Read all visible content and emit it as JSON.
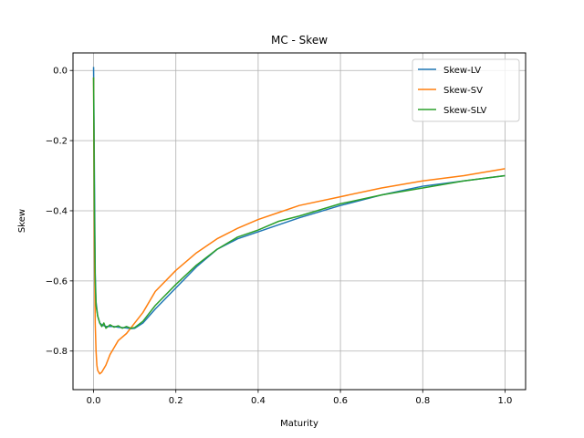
{
  "chart_data": {
    "type": "line",
    "title": "MC - Skew",
    "xlabel": "Maturity",
    "ylabel": "Skew",
    "xlim": [
      -0.05,
      1.05
    ],
    "ylim": [
      -0.91,
      0.05
    ],
    "xticks": [
      0.0,
      0.2,
      0.4,
      0.6,
      0.8,
      1.0
    ],
    "xtick_labels": [
      "0.0",
      "0.2",
      "0.4",
      "0.6",
      "0.8",
      "1.0"
    ],
    "yticks": [
      0.0,
      -0.2,
      -0.4,
      -0.6,
      -0.8
    ],
    "ytick_labels": [
      "0.0",
      "−0.2",
      "−0.4",
      "−0.6",
      "−0.8"
    ],
    "grid": true,
    "legend_position": "top-right",
    "series": [
      {
        "name": "Skew-LV",
        "color": "#1f77b4",
        "x": [
          0.0,
          0.002,
          0.004,
          0.006,
          0.01,
          0.015,
          0.02,
          0.03,
          0.04,
          0.05,
          0.06,
          0.07,
          0.08,
          0.09,
          0.1,
          0.12,
          0.15,
          0.2,
          0.25,
          0.3,
          0.35,
          0.4,
          0.45,
          0.5,
          0.6,
          0.7,
          0.8,
          0.9,
          1.0
        ],
        "y": [
          0.01,
          -0.3,
          -0.58,
          -0.66,
          -0.7,
          -0.72,
          -0.725,
          -0.73,
          -0.73,
          -0.73,
          -0.732,
          -0.733,
          -0.734,
          -0.736,
          -0.735,
          -0.72,
          -0.68,
          -0.62,
          -0.56,
          -0.51,
          -0.48,
          -0.46,
          -0.44,
          -0.42,
          -0.385,
          -0.355,
          -0.33,
          -0.315,
          -0.3
        ]
      },
      {
        "name": "Skew-SV",
        "color": "#ff7f0e",
        "x": [
          0.0,
          0.002,
          0.004,
          0.006,
          0.008,
          0.01,
          0.015,
          0.02,
          0.03,
          0.04,
          0.05,
          0.06,
          0.08,
          0.1,
          0.12,
          0.15,
          0.2,
          0.25,
          0.3,
          0.35,
          0.4,
          0.45,
          0.5,
          0.6,
          0.7,
          0.8,
          0.9,
          1.0
        ],
        "y": [
          -0.02,
          -0.5,
          -0.72,
          -0.8,
          -0.84,
          -0.855,
          -0.865,
          -0.86,
          -0.84,
          -0.81,
          -0.79,
          -0.77,
          -0.75,
          -0.72,
          -0.69,
          -0.63,
          -0.57,
          -0.52,
          -0.48,
          -0.45,
          -0.425,
          -0.405,
          -0.385,
          -0.36,
          -0.335,
          -0.315,
          -0.3,
          -0.28
        ]
      },
      {
        "name": "Skew-SLV",
        "color": "#2ca02c",
        "x": [
          0.0,
          0.002,
          0.004,
          0.006,
          0.01,
          0.015,
          0.02,
          0.025,
          0.03,
          0.04,
          0.05,
          0.06,
          0.07,
          0.08,
          0.09,
          0.1,
          0.12,
          0.15,
          0.2,
          0.25,
          0.3,
          0.35,
          0.4,
          0.45,
          0.5,
          0.6,
          0.7,
          0.8,
          0.9,
          1.0
        ],
        "y": [
          -0.02,
          -0.4,
          -0.6,
          -0.67,
          -0.7,
          -0.72,
          -0.73,
          -0.72,
          -0.735,
          -0.725,
          -0.732,
          -0.728,
          -0.735,
          -0.73,
          -0.735,
          -0.733,
          -0.715,
          -0.67,
          -0.61,
          -0.555,
          -0.51,
          -0.475,
          -0.455,
          -0.43,
          -0.415,
          -0.38,
          -0.355,
          -0.335,
          -0.315,
          -0.3
        ]
      }
    ]
  }
}
